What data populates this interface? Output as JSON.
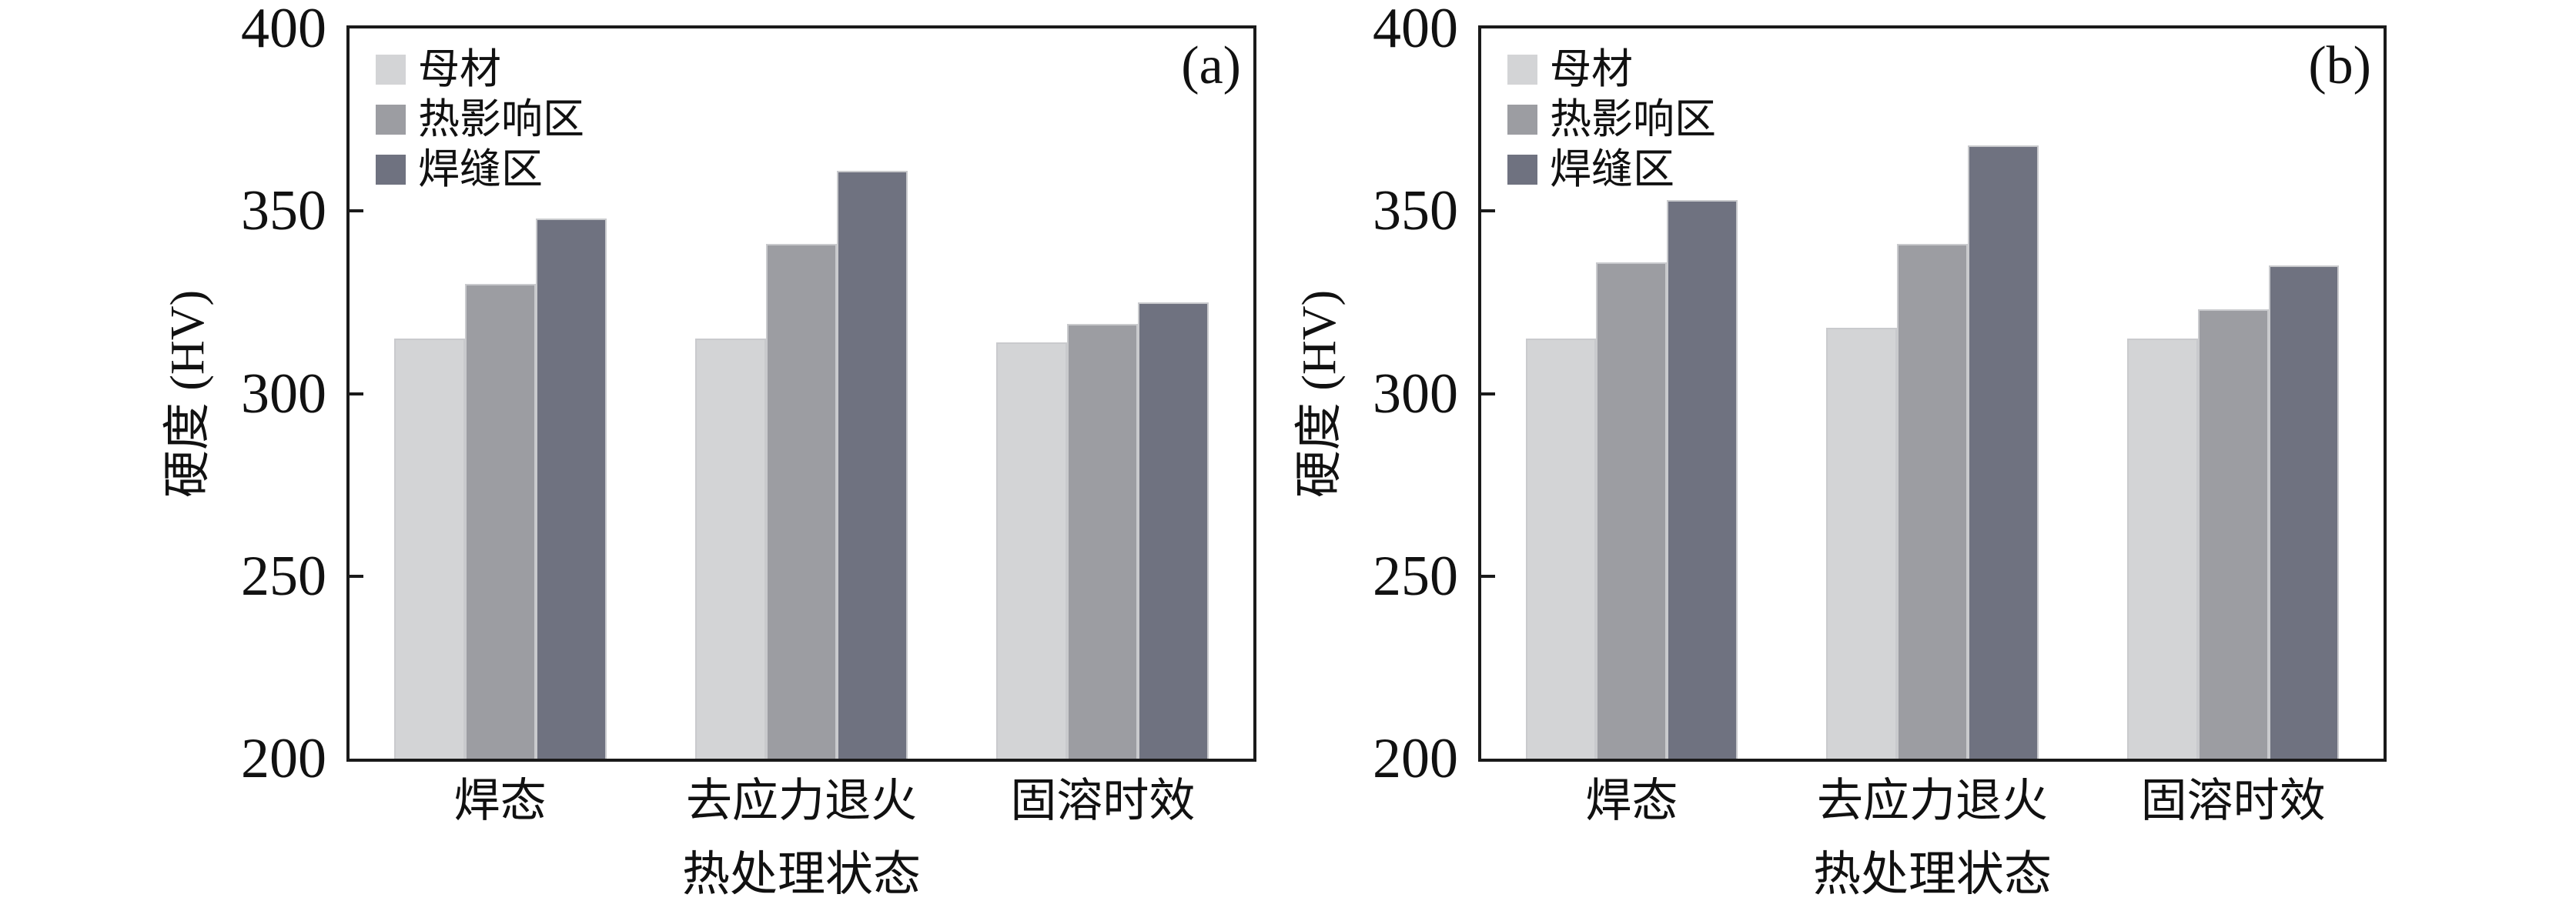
{
  "style": {
    "background": "#ffffff",
    "axis_color": "#1a1a1a",
    "text_color": "#111111",
    "bar_edge_color": "#c9cacd"
  },
  "chart_data": [
    {
      "type": "bar",
      "panel_label": "(a)",
      "xlabel": "热处理状态",
      "ylabel": "硬度 (HV)",
      "ylim": [
        200,
        400
      ],
      "yticks": [
        200,
        250,
        300,
        350,
        400
      ],
      "grid": false,
      "legend_position": "top-left",
      "categories": [
        "焊态",
        "去应力退火",
        "固溶时效"
      ],
      "series": [
        {
          "name": "母材",
          "color": "#d3d4d6",
          "values": [
            315,
            315,
            314
          ]
        },
        {
          "name": "热影响区",
          "color": "#9c9da2",
          "values": [
            330,
            341,
            319
          ]
        },
        {
          "name": "焊缝区",
          "color": "#6f7280",
          "values": [
            348,
            361,
            325
          ]
        }
      ]
    },
    {
      "type": "bar",
      "panel_label": "(b)",
      "xlabel": "热处理状态",
      "ylabel": "硬度 (HV)",
      "ylim": [
        200,
        400
      ],
      "yticks": [
        200,
        250,
        300,
        350,
        400
      ],
      "grid": false,
      "legend_position": "top-left",
      "categories": [
        "焊态",
        "去应力退火",
        "固溶时效"
      ],
      "series": [
        {
          "name": "母材",
          "color": "#d3d4d6",
          "values": [
            315,
            318,
            315
          ]
        },
        {
          "name": "热影响区",
          "color": "#9c9da2",
          "values": [
            336,
            341,
            323
          ]
        },
        {
          "name": "焊缝区",
          "color": "#6f7280",
          "values": [
            353,
            368,
            335
          ]
        }
      ]
    }
  ]
}
